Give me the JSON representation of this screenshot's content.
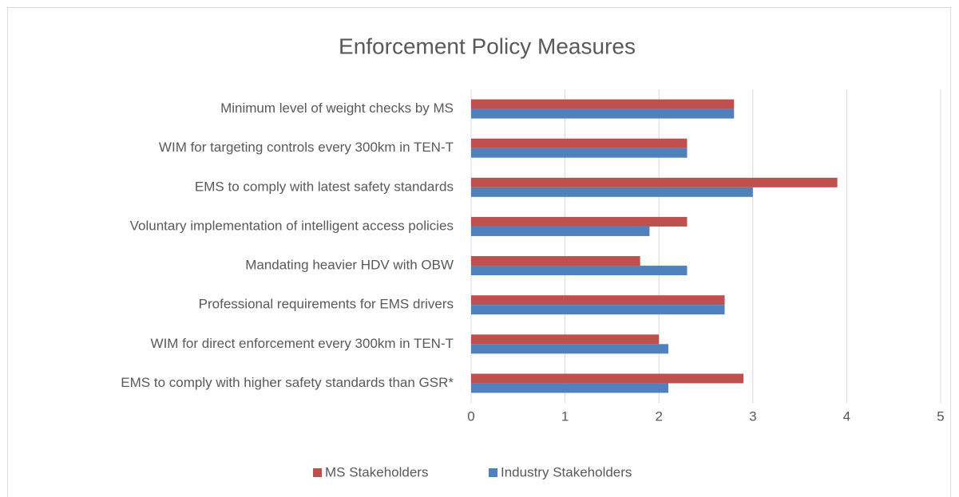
{
  "chart_data": {
    "type": "hbar",
    "title": "Enforcement Policy Measures",
    "categories": [
      "Minimum level of weight checks by MS",
      "WIM for targeting controls every 300km in TEN-T",
      "EMS to comply with latest safety standards",
      "Voluntary implementation of intelligent access policies",
      "Mandating heavier HDV with OBW",
      "Professional requirements for EMS drivers",
      "WIM for direct enforcement every 300km in TEN-T",
      "EMS to comply with higher safety  standards than GSR*"
    ],
    "series": [
      {
        "name": "MS Stakeholders",
        "color": "#c0504d",
        "values": [
          2.8,
          2.3,
          3.9,
          2.3,
          1.8,
          2.7,
          2.0,
          2.9
        ]
      },
      {
        "name": "Industry Stakeholders",
        "color": "#4f81bd",
        "values": [
          2.8,
          2.3,
          3.0,
          1.9,
          2.3,
          2.7,
          2.1,
          2.1
        ]
      }
    ],
    "xlim": [
      0,
      5
    ],
    "xticks": [
      0,
      1,
      2,
      3,
      4,
      5
    ],
    "grid": true,
    "legend": "bottom"
  }
}
